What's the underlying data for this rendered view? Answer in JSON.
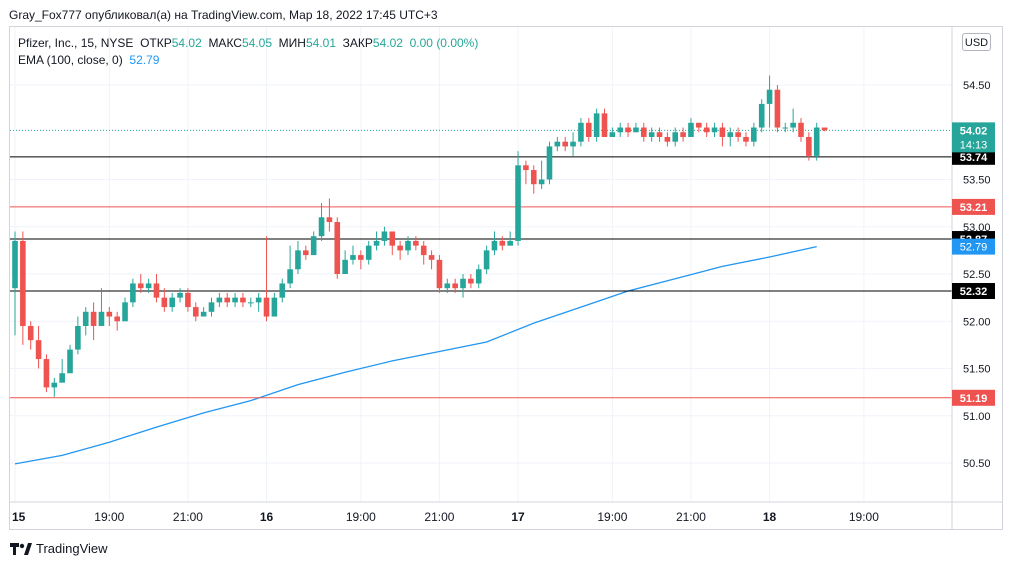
{
  "header": {
    "published_line": "Gray_Fox777 опубликовал(а) на TradingView.com, Мар 18, 2022 17:45 UTC+3"
  },
  "legend": {
    "symbol": "Pfizer, Inc., 15, NYSE",
    "open_label": "ОТКР",
    "open": "54.02",
    "high_label": "МАКС",
    "high": "54.05",
    "low_label": "МИН",
    "low": "54.01",
    "close_label": "ЗАКР",
    "close": "54.02",
    "change": "0.00 (0.00%)",
    "ema_label": "EMA (100, close, 0)",
    "ema_value": "52.79"
  },
  "currency": "USD",
  "brand": "TradingView",
  "colors": {
    "up": "#26a69a",
    "down": "#ef5350",
    "ema": "#2196f3",
    "black_line": "#000000",
    "red_line": "#ef5350"
  },
  "chart_data": {
    "type": "candlestick",
    "ylim": [
      50.2,
      55.2
    ],
    "y_ticks": [
      "54.50",
      "53.50",
      "53.00",
      "52.50",
      "52.00",
      "51.50",
      "51.00",
      "50.50"
    ],
    "x_ticks": [
      "15",
      "19:00",
      "21:00",
      "16",
      "19:00",
      "21:00",
      "17",
      "19:00",
      "21:00",
      "18",
      "19:00"
    ],
    "x_tick_index": [
      0,
      12,
      22,
      32,
      44,
      54,
      64,
      76,
      86,
      96,
      108
    ],
    "current_price": {
      "value": 54.02,
      "label": "54.02",
      "countdown": "14:13"
    },
    "horizontal_lines": [
      {
        "value": 53.74,
        "label": "53.74",
        "color": "black"
      },
      {
        "value": 53.21,
        "label": "53.21",
        "color": "red"
      },
      {
        "value": 52.87,
        "label": "52.87",
        "color": "black"
      },
      {
        "value": 52.32,
        "label": "52.32",
        "color": "black"
      },
      {
        "value": 51.19,
        "label": "51.19",
        "color": "red"
      }
    ],
    "ema": {
      "value": 52.79,
      "label": "52.79"
    },
    "ema_series": [
      [
        0,
        50.49
      ],
      [
        6,
        50.58
      ],
      [
        12,
        50.72
      ],
      [
        18,
        50.88
      ],
      [
        24,
        51.03
      ],
      [
        30,
        51.16
      ],
      [
        36,
        51.33
      ],
      [
        42,
        51.46
      ],
      [
        48,
        51.58
      ],
      [
        54,
        51.68
      ],
      [
        60,
        51.78
      ],
      [
        66,
        51.98
      ],
      [
        72,
        52.15
      ],
      [
        78,
        52.32
      ],
      [
        84,
        52.45
      ],
      [
        90,
        52.58
      ],
      [
        96,
        52.68
      ],
      [
        102,
        52.79
      ]
    ],
    "candles": [
      [
        52.35,
        52.85,
        52.95,
        51.85
      ],
      [
        52.85,
        51.95,
        52.95,
        51.75
      ],
      [
        51.95,
        51.8,
        52.0,
        51.7
      ],
      [
        51.8,
        51.6,
        51.95,
        51.5
      ],
      [
        51.6,
        51.3,
        51.65,
        51.25
      ],
      [
        51.3,
        51.35,
        51.4,
        51.2
      ],
      [
        51.35,
        51.45,
        51.6,
        51.4
      ],
      [
        51.45,
        51.7,
        51.75,
        51.45
      ],
      [
        51.7,
        51.95,
        52.05,
        51.65
      ],
      [
        51.95,
        52.1,
        52.15,
        51.85
      ],
      [
        52.1,
        51.95,
        52.2,
        51.8
      ],
      [
        51.95,
        52.1,
        52.35,
        51.95
      ],
      [
        52.1,
        52.05,
        52.15,
        51.95
      ],
      [
        52.05,
        52.0,
        52.1,
        51.9
      ],
      [
        52.0,
        52.2,
        52.25,
        52.0
      ],
      [
        52.2,
        52.4,
        52.45,
        52.15
      ],
      [
        52.4,
        52.35,
        52.5,
        52.3
      ],
      [
        52.35,
        52.4,
        52.45,
        52.3
      ],
      [
        52.4,
        52.25,
        52.5,
        52.2
      ],
      [
        52.25,
        52.15,
        52.35,
        52.1
      ],
      [
        52.15,
        52.25,
        52.3,
        52.1
      ],
      [
        52.25,
        52.3,
        52.35,
        52.2
      ],
      [
        52.3,
        52.15,
        52.35,
        52.1
      ],
      [
        52.15,
        52.05,
        52.2,
        52.0
      ],
      [
        52.05,
        52.1,
        52.15,
        52.05
      ],
      [
        52.1,
        52.2,
        52.25,
        52.05
      ],
      [
        52.2,
        52.25,
        52.3,
        52.15
      ],
      [
        52.25,
        52.2,
        52.3,
        52.15
      ],
      [
        52.2,
        52.25,
        52.3,
        52.15
      ],
      [
        52.25,
        52.2,
        52.3,
        52.15
      ],
      [
        52.2,
        52.2,
        52.25,
        52.15
      ],
      [
        52.2,
        52.25,
        52.3,
        52.1
      ],
      [
        52.25,
        52.05,
        52.9,
        52.0
      ],
      [
        52.05,
        52.25,
        52.3,
        52.2
      ],
      [
        52.25,
        52.4,
        52.45,
        52.2
      ],
      [
        52.4,
        52.55,
        52.8,
        52.35
      ],
      [
        52.55,
        52.75,
        52.85,
        52.5
      ],
      [
        52.75,
        52.7,
        52.8,
        52.65
      ],
      [
        52.7,
        52.9,
        52.95,
        52.7
      ],
      [
        52.9,
        53.1,
        53.25,
        52.85
      ],
      [
        53.1,
        53.05,
        53.3,
        52.95
      ],
      [
        53.05,
        52.5,
        53.1,
        52.45
      ],
      [
        52.5,
        52.65,
        52.75,
        52.5
      ],
      [
        52.65,
        52.7,
        52.8,
        52.6
      ],
      [
        52.7,
        52.65,
        52.75,
        52.55
      ],
      [
        52.65,
        52.8,
        52.85,
        52.6
      ],
      [
        52.8,
        52.85,
        52.95,
        52.75
      ],
      [
        52.85,
        52.95,
        53.0,
        52.8
      ],
      [
        52.95,
        52.8,
        52.95,
        52.7
      ],
      [
        52.8,
        52.75,
        52.85,
        52.65
      ],
      [
        52.75,
        52.85,
        52.9,
        52.7
      ],
      [
        52.85,
        52.8,
        52.9,
        52.75
      ],
      [
        52.8,
        52.7,
        52.85,
        52.6
      ],
      [
        52.7,
        52.65,
        52.75,
        52.55
      ],
      [
        52.65,
        52.35,
        52.7,
        52.3
      ],
      [
        52.35,
        52.4,
        52.45,
        52.3
      ],
      [
        52.4,
        52.35,
        52.45,
        52.3
      ],
      [
        52.35,
        52.45,
        52.5,
        52.25
      ],
      [
        52.45,
        52.4,
        52.5,
        52.35
      ],
      [
        52.4,
        52.55,
        52.6,
        52.35
      ],
      [
        52.55,
        52.75,
        52.8,
        52.5
      ],
      [
        52.75,
        52.85,
        52.95,
        52.7
      ],
      [
        52.85,
        52.8,
        52.9,
        52.75
      ],
      [
        52.8,
        52.85,
        52.95,
        52.8
      ],
      [
        52.85,
        53.65,
        53.8,
        52.8
      ],
      [
        53.65,
        53.6,
        53.7,
        53.45
      ],
      [
        53.6,
        53.45,
        53.65,
        53.35
      ],
      [
        53.45,
        53.5,
        53.7,
        53.4
      ],
      [
        53.5,
        53.85,
        53.9,
        53.45
      ],
      [
        53.85,
        53.9,
        53.95,
        53.8
      ],
      [
        53.9,
        53.85,
        53.95,
        53.8
      ],
      [
        53.85,
        53.9,
        54.0,
        53.75
      ],
      [
        53.9,
        54.1,
        54.15,
        53.85
      ],
      [
        54.1,
        53.95,
        54.15,
        53.9
      ],
      [
        53.95,
        54.2,
        54.25,
        53.9
      ],
      [
        54.2,
        53.95,
        54.25,
        53.95
      ],
      [
        53.95,
        54.0,
        54.05,
        53.95
      ],
      [
        54.0,
        54.05,
        54.1,
        53.95
      ],
      [
        54.05,
        54.0,
        54.1,
        53.95
      ],
      [
        54.0,
        54.05,
        54.1,
        54.0
      ],
      [
        54.05,
        53.95,
        54.1,
        53.9
      ],
      [
        53.95,
        54.0,
        54.05,
        53.9
      ],
      [
        54.0,
        53.95,
        54.05,
        53.9
      ],
      [
        53.95,
        53.9,
        54.0,
        53.85
      ],
      [
        53.9,
        54.0,
        54.05,
        53.85
      ],
      [
        54.0,
        53.95,
        54.05,
        53.9
      ],
      [
        53.95,
        54.1,
        54.15,
        53.95
      ],
      [
        54.1,
        54.05,
        54.1,
        54.0
      ],
      [
        54.05,
        54.0,
        54.1,
        53.95
      ],
      [
        54.0,
        54.05,
        54.1,
        53.95
      ],
      [
        54.05,
        53.95,
        54.1,
        53.85
      ],
      [
        53.95,
        54.0,
        54.05,
        53.85
      ],
      [
        54.0,
        53.95,
        54.05,
        53.9
      ],
      [
        53.95,
        53.9,
        54.0,
        53.85
      ],
      [
        53.9,
        54.05,
        54.1,
        53.85
      ],
      [
        54.05,
        54.3,
        54.35,
        54.0
      ],
      [
        54.3,
        54.45,
        54.6,
        54.05
      ],
      [
        54.45,
        54.05,
        54.5,
        54.0
      ],
      [
        54.05,
        54.05,
        54.1,
        54.0
      ],
      [
        54.05,
        54.1,
        54.25,
        54.0
      ],
      [
        54.1,
        53.95,
        54.15,
        53.9
      ],
      [
        53.95,
        53.75,
        54.0,
        53.7
      ],
      [
        53.75,
        54.05,
        54.1,
        53.7
      ],
      [
        54.05,
        54.02,
        54.05,
        54.01
      ]
    ]
  }
}
